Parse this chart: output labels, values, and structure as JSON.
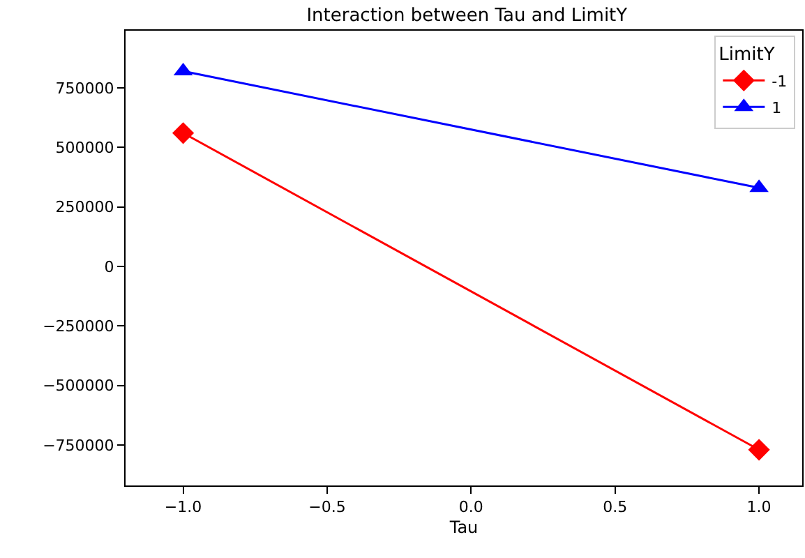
{
  "chart_data": {
    "type": "line",
    "title": "Interaction between Tau and LimitY",
    "xlabel": "Tau",
    "legend_title": "LimitY",
    "legend": "top right",
    "x": [
      -1.0,
      1.0
    ],
    "series": [
      {
        "name": "-1",
        "color": "#ff0000",
        "values": [
          560000,
          -770000
        ],
        "marker": "diamond"
      },
      {
        "name": "1",
        "color": "#0000ff",
        "values": [
          820000,
          330000
        ],
        "marker": "triangle"
      }
    ],
    "xlim": [
      -1.2,
      1.15
    ],
    "xticks": [
      {
        "value": -1.0,
        "label": "−1.0"
      },
      {
        "value": -0.5,
        "label": "−0.5"
      },
      {
        "value": 0.0,
        "label": "0.0"
      },
      {
        "value": 0.5,
        "label": "0.5"
      },
      {
        "value": 1.0,
        "label": "1.0"
      }
    ],
    "ylim": [
      -920000,
      990000
    ],
    "yticks": [
      {
        "value": -750000,
        "label": "−750000"
      },
      {
        "value": -500000,
        "label": "−500000"
      },
      {
        "value": -250000,
        "label": "−250000"
      },
      0,
      250000,
      500000,
      750000
    ]
  }
}
